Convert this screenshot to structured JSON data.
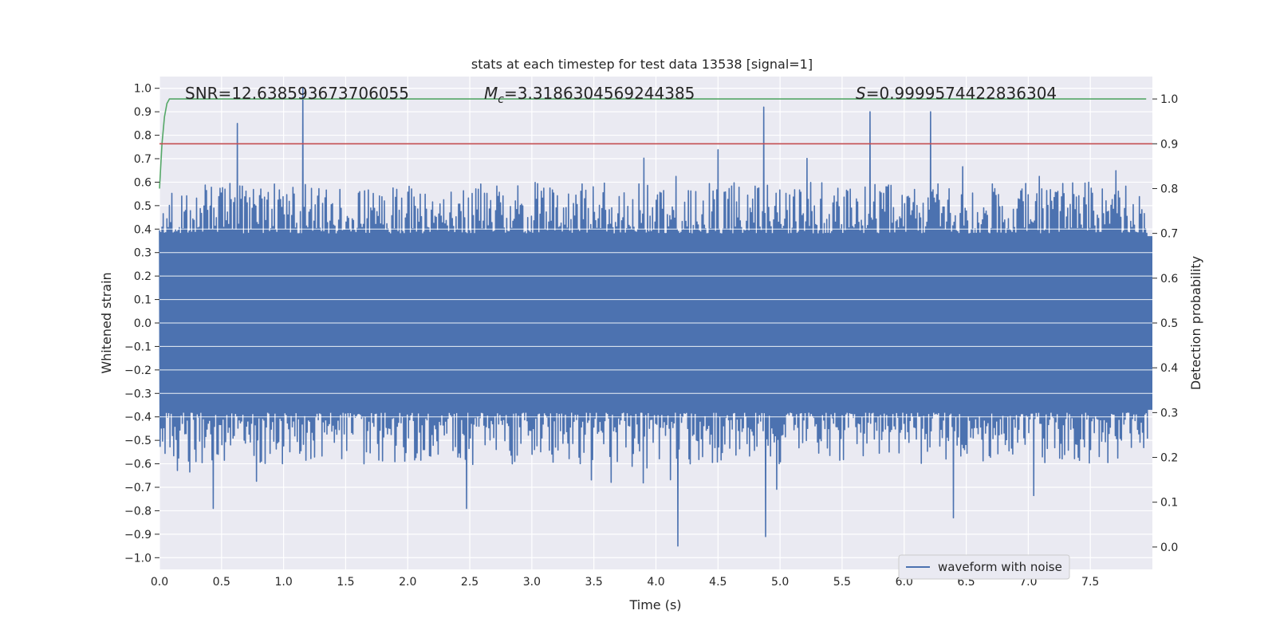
{
  "chart_data": {
    "type": "line",
    "title": "stats at each timestep for test data 13538 [signal=1]",
    "xlabel": "Time (s)",
    "ylabel": "Whitened strain",
    "y2label": "Detection probability",
    "xlim": [
      0.0,
      8.0
    ],
    "ylim": [
      -1.05,
      1.05
    ],
    "y2lim": [
      -0.05,
      1.05
    ],
    "x_ticks": [
      0.0,
      0.5,
      1.0,
      1.5,
      2.0,
      2.5,
      3.0,
      3.5,
      4.0,
      4.5,
      5.0,
      5.5,
      6.0,
      6.5,
      7.0,
      7.5
    ],
    "x_tick_labels": [
      "0.0",
      "0.5",
      "1.0",
      "1.5",
      "2.0",
      "2.5",
      "3.0",
      "3.5",
      "4.0",
      "4.5",
      "5.0",
      "5.5",
      "6.0",
      "6.5",
      "7.0",
      "7.5"
    ],
    "y_ticks": [
      1.0,
      0.9,
      0.8,
      0.7,
      0.6,
      0.5,
      0.4,
      0.3,
      0.2,
      0.1,
      0.0,
      -0.1,
      -0.2,
      -0.3,
      -0.4,
      -0.5,
      -0.6,
      -0.7,
      -0.8,
      -0.9,
      -1.0
    ],
    "y_tick_labels": [
      "1.0",
      "0.9",
      "0.8",
      "0.7",
      "0.6",
      "0.5",
      "0.4",
      "0.3",
      "0.2",
      "0.1",
      "0.0",
      "−0.1",
      "−0.2",
      "−0.3",
      "−0.4",
      "−0.5",
      "−0.6",
      "−0.7",
      "−0.8",
      "−0.9",
      "−1.0"
    ],
    "y2_ticks": [
      1.0,
      0.9,
      0.8,
      0.7,
      0.6,
      0.5,
      0.4,
      0.3,
      0.2,
      0.1,
      0.0
    ],
    "y2_tick_labels": [
      "1.0",
      "0.9",
      "0.8",
      "0.7",
      "0.6",
      "0.5",
      "0.4",
      "0.3",
      "0.2",
      "0.1",
      "0.0"
    ],
    "grid": true,
    "legend_position": "lower-right",
    "series": [
      {
        "name": "waveform with noise",
        "color": "#4c72b0",
        "axis": "left",
        "description_peaks": [
          {
            "x": 1.15,
            "y": 1.0
          },
          {
            "x": 4.87,
            "y": 0.92
          },
          {
            "x": 5.72,
            "y": 0.9
          },
          {
            "x": 6.21,
            "y": 0.9
          },
          {
            "x": 0.63,
            "y": 0.85
          },
          {
            "x": 4.18,
            "y": -0.95
          },
          {
            "x": 4.88,
            "y": -0.91
          },
          {
            "x": 6.4,
            "y": -0.83
          },
          {
            "x": 0.43,
            "y": -0.79
          },
          {
            "x": 2.47,
            "y": -0.79
          }
        ]
      },
      {
        "color": "#55a868",
        "axis": "right",
        "x": [
          0.0,
          0.02,
          0.04,
          0.06,
          0.08,
          0.12,
          0.2,
          7.95
        ],
        "y": [
          0.8,
          0.9,
          0.96,
          0.99,
          1.0,
          1.0,
          1.0,
          1.0
        ]
      },
      {
        "color": "#c44e52",
        "axis": "right",
        "x": [
          0.0,
          8.0
        ],
        "y": [
          0.9,
          0.9
        ]
      }
    ],
    "annotations": [
      {
        "id": "snr",
        "prefix": "SNR=",
        "value": "12.638593673706055"
      },
      {
        "id": "mc",
        "symbol": "M",
        "subscript": "c",
        "prefix": "=",
        "value": "3.3186304569244385"
      },
      {
        "id": "s",
        "symbol": "S",
        "prefix": "=",
        "value": "0.9999574422836304"
      }
    ]
  }
}
